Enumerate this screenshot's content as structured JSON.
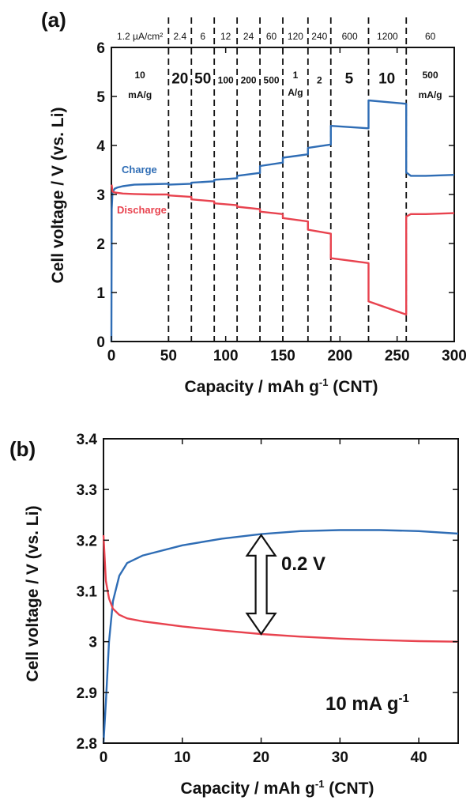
{
  "chart_data": [
    {
      "panel": "(a)",
      "type": "line",
      "xlabel": "Capacity / mAh g",
      "xlabel_sup": "-1",
      "xlabel_suffix": " (CNT)",
      "ylabel": "Cell voltage / V (vs. Li)",
      "xlim": [
        0,
        300
      ],
      "ylim": [
        0,
        6
      ],
      "xticks": [
        0,
        50,
        100,
        150,
        200,
        250,
        300
      ],
      "yticks": [
        0,
        1,
        2,
        3,
        4,
        5,
        6
      ],
      "dividers": [
        50,
        70,
        90,
        110,
        130,
        150,
        172,
        192,
        225,
        258
      ],
      "top_rates": [
        "1.2 µA/cm²",
        "2.4",
        "6",
        "12",
        "24",
        "60",
        "120",
        "240",
        "600",
        "1200",
        "60"
      ],
      "current_labels": [
        {
          "text": "10",
          "x": 25,
          "y": 5.45,
          "size": "mid"
        },
        {
          "text": "mA/g",
          "x": 25,
          "y": 5.05,
          "size": "mid"
        },
        {
          "text": "20",
          "x": 60,
          "y": 5.35,
          "size": "big"
        },
        {
          "text": "50",
          "x": 80,
          "y": 5.35,
          "size": "big"
        },
        {
          "text": "100",
          "x": 100,
          "y": 5.35,
          "size": "mid"
        },
        {
          "text": "200",
          "x": 120,
          "y": 5.35,
          "size": "mid"
        },
        {
          "text": "500",
          "x": 140,
          "y": 5.35,
          "size": "mid"
        },
        {
          "text": "1",
          "x": 161,
          "y": 5.45,
          "size": "mid"
        },
        {
          "text": "A/g",
          "x": 161,
          "y": 5.1,
          "size": "mid"
        },
        {
          "text": "2",
          "x": 182,
          "y": 5.35,
          "size": "mid"
        },
        {
          "text": "5",
          "x": 208,
          "y": 5.35,
          "size": "big"
        },
        {
          "text": "10",
          "x": 241,
          "y": 5.35,
          "size": "big"
        },
        {
          "text": "500",
          "x": 279,
          "y": 5.45,
          "size": "mid"
        },
        {
          "text": "mA/g",
          "x": 279,
          "y": 5.05,
          "size": "mid"
        }
      ],
      "series": [
        {
          "name": "Charge",
          "color": "#2f6db5",
          "x": [
            0,
            0.3,
            1,
            3,
            5,
            10,
            20,
            35,
            50,
            50,
            70,
            70,
            90,
            90,
            110,
            110,
            130,
            130,
            150,
            150,
            172,
            172,
            192,
            192,
            225,
            225,
            258,
            258,
            262,
            275,
            300
          ],
          "y": [
            0,
            2.7,
            3.05,
            3.12,
            3.14,
            3.17,
            3.2,
            3.21,
            3.22,
            3.2,
            3.22,
            3.24,
            3.27,
            3.3,
            3.33,
            3.38,
            3.44,
            3.58,
            3.65,
            3.75,
            3.82,
            3.95,
            4.02,
            4.4,
            4.35,
            4.92,
            4.85,
            3.45,
            3.38,
            3.38,
            3.4
          ]
        },
        {
          "name": "Discharge",
          "color": "#e8434f",
          "x": [
            0.2,
            1,
            3,
            10,
            20,
            35,
            50,
            50,
            70,
            70,
            90,
            90,
            110,
            110,
            130,
            130,
            150,
            150,
            172,
            172,
            192,
            192,
            225,
            225,
            258,
            258,
            262,
            275,
            300
          ],
          "y": [
            3.2,
            3.06,
            3.04,
            3.02,
            3.01,
            3.0,
            3.0,
            2.98,
            2.95,
            2.9,
            2.86,
            2.82,
            2.78,
            2.75,
            2.7,
            2.65,
            2.6,
            2.52,
            2.45,
            2.28,
            2.2,
            1.7,
            1.6,
            0.82,
            0.55,
            2.55,
            2.6,
            2.6,
            2.62
          ]
        }
      ]
    },
    {
      "panel": "(b)",
      "type": "line",
      "xlabel": "Capacity / mAh g",
      "xlabel_sup": "-1",
      "xlabel_suffix": " (CNT)",
      "ylabel": "Cell voltage / V (vs. Li)",
      "xlim": [
        0,
        45
      ],
      "ylim": [
        2.8,
        3.4
      ],
      "xticks": [
        0,
        10,
        20,
        30,
        40
      ],
      "yticks": [
        2.8,
        2.9,
        3,
        3.1,
        3.2,
        3.3,
        3.4
      ],
      "ytick_labels": [
        "2.8",
        "2.9",
        "3",
        "3.1",
        "3.2",
        "3.3",
        "3.4"
      ],
      "annotation": "0.2 V",
      "arrow_x": 20,
      "arrow_y": [
        3.015,
        3.21
      ],
      "rate_label": "10 mA g",
      "rate_label_sup": "-1",
      "series": [
        {
          "name": "Charge",
          "color": "#2f6db5",
          "x": [
            0,
            0.3,
            0.7,
            1.2,
            2,
            3,
            5,
            10,
            15,
            20,
            25,
            30,
            35,
            40,
            45
          ],
          "y": [
            2.8,
            2.88,
            3.0,
            3.08,
            3.13,
            3.155,
            3.17,
            3.19,
            3.203,
            3.212,
            3.218,
            3.22,
            3.22,
            3.218,
            3.213
          ]
        },
        {
          "name": "Discharge",
          "color": "#e8434f",
          "x": [
            0,
            0.3,
            0.7,
            1.2,
            2,
            3,
            5,
            10,
            15,
            20,
            25,
            30,
            35,
            40,
            45
          ],
          "y": [
            3.21,
            3.12,
            3.085,
            3.065,
            3.053,
            3.046,
            3.04,
            3.03,
            3.022,
            3.015,
            3.01,
            3.006,
            3.003,
            3.001,
            3.0
          ]
        }
      ]
    }
  ]
}
